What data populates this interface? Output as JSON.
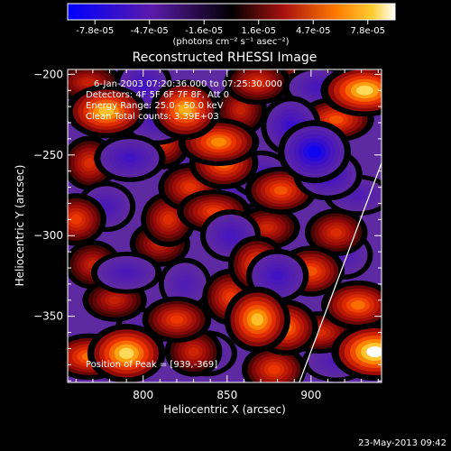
{
  "chart_data": {
    "type": "heatmap",
    "title": "Reconstructed RHESSI Image",
    "xlabel": "Heliocentric X (arcsec)",
    "ylabel": "Heliocentric Y (arcsec)",
    "xlim": [
      755,
      942
    ],
    "ylim": [
      -391,
      -197
    ],
    "x_ticks": [
      800,
      850,
      900
    ],
    "y_ticks": [
      -200,
      -250,
      -300,
      -350
    ],
    "colorbar": {
      "ticks": [
        "-7.8e-05",
        "-4.7e-05",
        "-1.6e-05",
        "1.6e-05",
        "4.7e-05",
        "7.8e-05"
      ],
      "min": -7.8e-05,
      "max": 7.8e-05,
      "units_line": "(photons cm⁻² s⁻¹ asec⁻²)"
    },
    "annotations": [
      "6-Jan-2003 07:20:36.000 to 07:25:30.000",
      "Detectors: 4F 5F 6F 7F 8F, Att 0",
      "Energy Range: 25.0 - 50.0 keV",
      "Clean    Total counts: 3.39E+03"
    ],
    "peak_label": "Position of Peak = [939,-369]",
    "peak": {
      "x": 939,
      "y": -369
    },
    "limb_line": [
      [
        893,
        -391
      ],
      [
        942,
        -255
      ]
    ],
    "blobs": [
      {
        "x": 825,
        "y": -222,
        "v": 6.2e-05
      },
      {
        "x": 845,
        "y": -242,
        "v": 5.5e-05
      },
      {
        "x": 848,
        "y": -255,
        "v": 5e-05
      },
      {
        "x": 828,
        "y": -270,
        "v": 3.8e-05
      },
      {
        "x": 842,
        "y": -285,
        "v": 4e-05
      },
      {
        "x": 815,
        "y": -290,
        "v": 3.6e-05
      },
      {
        "x": 810,
        "y": -305,
        "v": 3e-05
      },
      {
        "x": 778,
        "y": -223,
        "v": 6.5e-05
      },
      {
        "x": 767,
        "y": -205,
        "v": 3e-05
      },
      {
        "x": 768,
        "y": -255,
        "v": 3.5e-05
      },
      {
        "x": 760,
        "y": -290,
        "v": 4e-05
      },
      {
        "x": 770,
        "y": -318,
        "v": 3e-05
      },
      {
        "x": 783,
        "y": -340,
        "v": 3e-05
      },
      {
        "x": 790,
        "y": -373,
        "v": 7e-05
      },
      {
        "x": 768,
        "y": -375,
        "v": 5e-05
      },
      {
        "x": 820,
        "y": -352,
        "v": 4e-05
      },
      {
        "x": 830,
        "y": -372,
        "v": 3.2e-05
      },
      {
        "x": 868,
        "y": -352,
        "v": 6.5e-05
      },
      {
        "x": 885,
        "y": -357,
        "v": 5e-05
      },
      {
        "x": 852,
        "y": -338,
        "v": 4e-05
      },
      {
        "x": 878,
        "y": -383,
        "v": 4e-05
      },
      {
        "x": 882,
        "y": -272,
        "v": 4.5e-05
      },
      {
        "x": 874,
        "y": -295,
        "v": 3.2e-05
      },
      {
        "x": 868,
        "y": -318,
        "v": 4.5e-05
      },
      {
        "x": 900,
        "y": -322,
        "v": 4.5e-05
      },
      {
        "x": 915,
        "y": -298,
        "v": 3.5e-05
      },
      {
        "x": 905,
        "y": -360,
        "v": 3.5e-05
      },
      {
        "x": 928,
        "y": -343,
        "v": 5e-05
      },
      {
        "x": 938,
        "y": -372,
        "v": 7.8e-05
      },
      {
        "x": 932,
        "y": -210,
        "v": 7e-05
      },
      {
        "x": 915,
        "y": -228,
        "v": 4.5e-05
      },
      {
        "x": 897,
        "y": -203,
        "v": 3.5e-05
      },
      {
        "x": 868,
        "y": -205,
        "v": 3.5e-05
      },
      {
        "x": 812,
        "y": -242,
        "v": 3.5e-05
      },
      {
        "x": 858,
        "y": -222,
        "v": 3e-05
      },
      {
        "x": 902,
        "y": -248,
        "v": -7e-05
      },
      {
        "x": 888,
        "y": -232,
        "v": -5e-05
      },
      {
        "x": 910,
        "y": -262,
        "v": -5e-05
      },
      {
        "x": 905,
        "y": -208,
        "v": -4e-05
      },
      {
        "x": 870,
        "y": -262,
        "v": -3.5e-05
      },
      {
        "x": 880,
        "y": -325,
        "v": -4.5e-05
      },
      {
        "x": 792,
        "y": -252,
        "v": -4.5e-05
      },
      {
        "x": 790,
        "y": -323,
        "v": -3.5e-05
      },
      {
        "x": 778,
        "y": -282,
        "v": -3.5e-05
      },
      {
        "x": 800,
        "y": -207,
        "v": -4.5e-05
      },
      {
        "x": 808,
        "y": -230,
        "v": -3.5e-05
      },
      {
        "x": 838,
        "y": -373,
        "v": -3e-05
      },
      {
        "x": 915,
        "y": -378,
        "v": -3e-05
      },
      {
        "x": 920,
        "y": -312,
        "v": -3e-05
      },
      {
        "x": 852,
        "y": -300,
        "v": -4e-05
      },
      {
        "x": 835,
        "y": -255,
        "v": -3e-05
      },
      {
        "x": 825,
        "y": -330,
        "v": -3e-05
      },
      {
        "x": 857,
        "y": -270,
        "v": -3e-05
      },
      {
        "x": 798,
        "y": -360,
        "v": -2.5e-05
      },
      {
        "x": 928,
        "y": -275,
        "v": -3e-05
      }
    ]
  },
  "footer": {
    "timestamp": "23-May-2013 09:42"
  }
}
